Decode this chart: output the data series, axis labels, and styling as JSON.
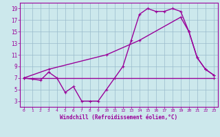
{
  "xlabel": "Windchill (Refroidissement éolien,°C)",
  "bg_color": "#cce8ec",
  "line_color": "#990099",
  "grid_color": "#99bbcc",
  "text_color": "#990099",
  "axis_color": "#990099",
  "xlim": [
    -0.5,
    23.5
  ],
  "ylim": [
    2,
    20
  ],
  "xticks": [
    0,
    1,
    2,
    3,
    4,
    5,
    6,
    7,
    8,
    9,
    10,
    11,
    12,
    13,
    14,
    15,
    16,
    17,
    18,
    19,
    20,
    21,
    22,
    23
  ],
  "yticks": [
    3,
    5,
    7,
    9,
    11,
    13,
    15,
    17,
    19
  ],
  "line1_x": [
    0,
    1,
    2,
    3,
    4,
    5,
    6,
    7,
    8,
    9,
    10,
    11,
    12,
    13,
    14,
    15,
    16,
    17,
    18,
    19,
    20,
    21,
    22,
    23
  ],
  "line1_y": [
    7,
    6.8,
    6.6,
    8,
    7,
    4.5,
    5.5,
    3,
    3,
    3,
    5,
    7,
    9,
    13.5,
    18,
    19,
    18.5,
    18.5,
    19,
    18.5,
    15,
    10.5,
    8.5,
    7.5
  ],
  "line2_x": [
    0,
    23
  ],
  "line2_y": [
    7,
    7
  ],
  "line3_x": [
    0,
    3,
    10,
    14,
    19,
    20,
    21,
    22,
    23
  ],
  "line3_y": [
    7,
    8.5,
    11,
    13.5,
    17.5,
    15,
    10.5,
    8.5,
    7.5
  ]
}
